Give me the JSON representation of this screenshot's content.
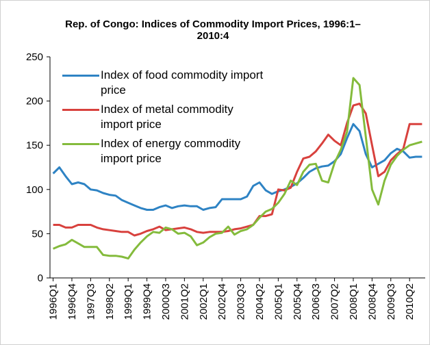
{
  "chart_data": {
    "type": "line",
    "title": "Rep. of Congo: Indices of Commodity Import Prices, 1996:1–2010:4",
    "categories": [
      "1996Q1",
      null,
      null,
      "1996Q4",
      null,
      null,
      "1997Q3",
      null,
      null,
      "1998Q2",
      null,
      null,
      "1999Q1",
      null,
      null,
      "1999Q4",
      null,
      null,
      "2000Q3",
      null,
      null,
      "2001Q2",
      null,
      null,
      "2002Q1",
      null,
      null,
      "2002Q4",
      null,
      null,
      "2003Q3",
      null,
      null,
      "2004Q2",
      null,
      null,
      "2005Q1",
      null,
      null,
      "2005Q4",
      null,
      null,
      "2006Q3",
      null,
      null,
      "2007Q2",
      null,
      null,
      "2008Q1",
      null,
      null,
      "2008Q4",
      null,
      null,
      "2009Q3",
      null,
      null,
      "2010Q2",
      null,
      null
    ],
    "series": [
      {
        "name": "Index of food commodity import price",
        "color": "#2e83c4",
        "values": [
          118,
          125,
          115,
          106,
          108,
          106,
          100,
          99,
          96,
          94,
          93,
          88,
          85,
          82,
          79,
          77,
          77,
          80,
          82,
          79,
          81,
          82,
          81,
          81,
          77,
          79,
          80,
          89,
          89,
          89,
          89,
          92,
          104,
          108,
          99,
          95,
          98,
          100,
          103,
          107,
          113,
          120,
          124,
          126,
          127,
          132,
          140,
          158,
          174,
          166,
          140,
          125,
          129,
          133,
          141,
          146,
          143,
          136,
          137,
          137
        ]
      },
      {
        "name": "Index of metal commodity import price",
        "color": "#d8413d",
        "values": [
          60,
          60,
          57,
          57,
          60,
          60,
          60,
          57,
          55,
          54,
          53,
          52,
          52,
          48,
          50,
          53,
          55,
          58,
          54,
          55,
          56,
          57,
          55,
          52,
          51,
          52,
          52,
          52,
          53,
          55,
          56,
          58,
          60,
          70,
          70,
          72,
          100,
          99,
          102,
          120,
          135,
          137,
          143,
          152,
          162,
          155,
          150,
          175,
          195,
          197,
          186,
          150,
          115,
          120,
          133,
          140,
          146,
          174,
          174,
          174
        ]
      },
      {
        "name": "Index of energy commodity import price",
        "color": "#84bb3c",
        "values": [
          33,
          36,
          38,
          43,
          39,
          35,
          35,
          35,
          26,
          25,
          25,
          24,
          22,
          32,
          40,
          47,
          52,
          51,
          57,
          55,
          50,
          51,
          47,
          37,
          40,
          46,
          50,
          51,
          58,
          49,
          53,
          55,
          60,
          68,
          75,
          78,
          85,
          95,
          110,
          105,
          120,
          128,
          129,
          110,
          108,
          130,
          145,
          165,
          226,
          218,
          160,
          100,
          83,
          110,
          128,
          138,
          145,
          150,
          152,
          154
        ]
      }
    ],
    "ylim": [
      0,
      250
    ],
    "yticks": [
      0,
      50,
      100,
      150,
      200,
      250
    ]
  }
}
